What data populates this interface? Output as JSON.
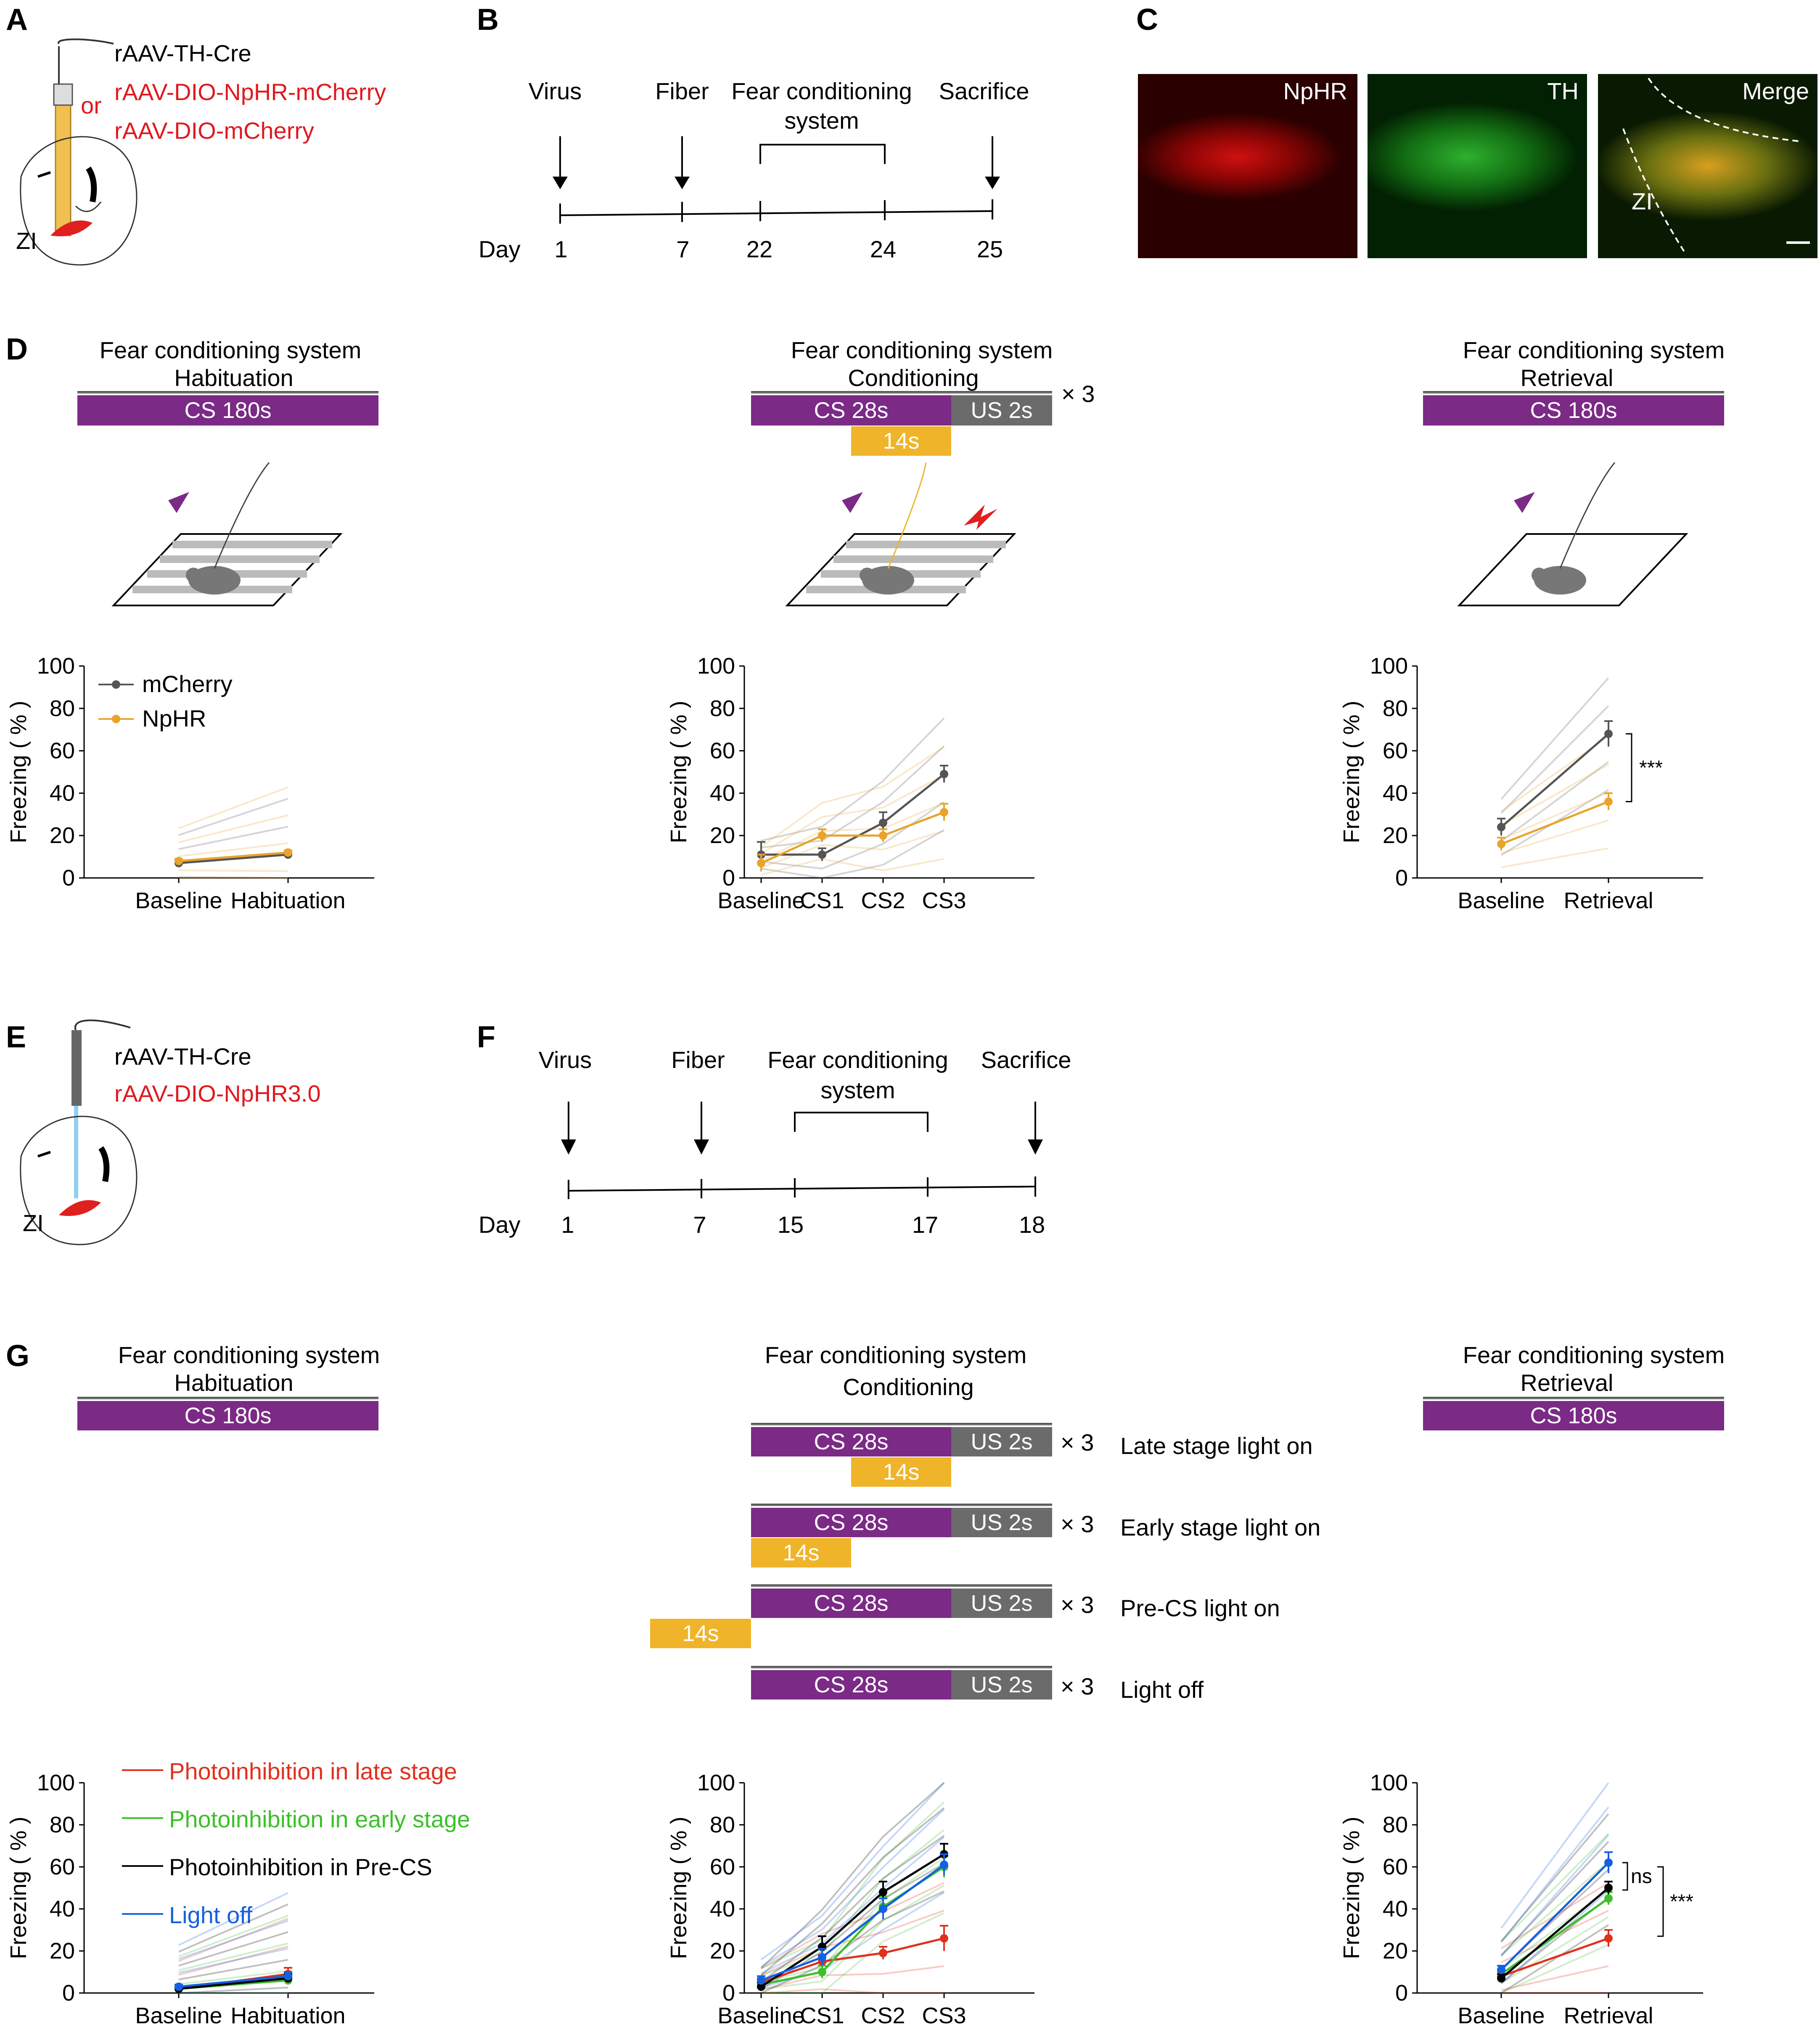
{
  "panels": {
    "A": "A",
    "B": "B",
    "C": "C",
    "D": "D",
    "E": "E",
    "F": "F",
    "G": "G"
  },
  "panelA": {
    "virus1": "rAAV-TH-Cre",
    "or": "or",
    "virus2": "rAAV-DIO-NpHR-mCherry",
    "virus3": "rAAV-DIO-mCherry",
    "region": "ZI"
  },
  "panelB": {
    "events": [
      "Virus",
      "Fiber",
      "Fear conditioning",
      "system",
      "Sacrifice"
    ],
    "day_label": "Day",
    "days": [
      "1",
      "7",
      "22",
      "24",
      "25"
    ]
  },
  "panelC": {
    "images": [
      "NpHR",
      "TH",
      "Merge"
    ],
    "region": "ZI",
    "colors": {
      "red": "#e81010",
      "green": "#1fa01f"
    }
  },
  "panelD": {
    "protocols": [
      {
        "title": "Fear conditioning system",
        "phase": "Habituation",
        "cs": "CS  180s"
      },
      {
        "title": "Fear conditioning system",
        "phase": "Conditioning",
        "cs": "CS  28s",
        "us": "US  2s",
        "light": "14s",
        "repeat": "× 3"
      },
      {
        "title": "Fear conditioning system",
        "phase": "Retrieval",
        "cs": "CS  180s"
      }
    ]
  },
  "panelE": {
    "virus1": "rAAV-TH-Cre",
    "virus2": "rAAV-DIO-NpHR3.0",
    "region": "ZI"
  },
  "panelF": {
    "events": [
      "Virus",
      "Fiber",
      "Fear conditioning",
      "system",
      "Sacrifice"
    ],
    "day_label": "Day",
    "days": [
      "1",
      "7",
      "15",
      "17",
      "18"
    ]
  },
  "panelG": {
    "habituation": {
      "title": "Fear conditioning system",
      "phase": "Habituation",
      "cs": "CS  180s"
    },
    "conditioning": {
      "title": "Fear conditioning system",
      "phase": "Conditioning"
    },
    "retrieval": {
      "title": "Fear conditioning system",
      "phase": "Retrieval",
      "cs": "CS  180s"
    },
    "rows": [
      {
        "cs": "CS  28s",
        "us": "US  2s",
        "light": "14s",
        "repeat": "× 3",
        "label": "Late stage light on"
      },
      {
        "cs": "CS  28s",
        "us": "US  2s",
        "light": "14s",
        "repeat": "× 3",
        "label": "Early stage light on"
      },
      {
        "cs": "CS  28s",
        "us": "US  2s",
        "light": "14s",
        "repeat": "× 3",
        "label": "Pre-CS  light on"
      },
      {
        "cs": "CS  28s",
        "us": "US  2s",
        "repeat": "× 3",
        "label": "Light off"
      }
    ],
    "legend": [
      {
        "name": "Photoinhibition in late stage",
        "color": "#e0301c"
      },
      {
        "name": "Photoinhibition in early stage",
        "color": "#3cc02a"
      },
      {
        "name": "Photoinhibition in Pre-CS",
        "color": "#000000"
      },
      {
        "name": "Light off",
        "color": "#1560e0"
      }
    ]
  },
  "chart_data": [
    {
      "id": "D1",
      "type": "line",
      "ylabel": "Freezing ( % )",
      "ylim": [
        0,
        100
      ],
      "yticks": [
        "0",
        "20",
        "40",
        "60",
        "80",
        "100"
      ],
      "categories": [
        "Baseline",
        "Habituation"
      ],
      "legend": [
        "mCherry",
        "NpHR"
      ],
      "series": [
        {
          "name": "mCherry",
          "color": "#555555",
          "values": [
            7,
            11
          ],
          "err": [
            1,
            1
          ]
        },
        {
          "name": "NpHR",
          "color": "#e8a42a",
          "values": [
            8,
            12
          ],
          "err": [
            1,
            1
          ]
        }
      ]
    },
    {
      "id": "D2",
      "type": "line",
      "ylabel": "Freezing ( % )",
      "ylim": [
        0,
        100
      ],
      "yticks": [
        "0",
        "20",
        "40",
        "60",
        "80",
        "100"
      ],
      "categories": [
        "Baseline",
        "CS1",
        "CS2",
        "CS3"
      ],
      "series": [
        {
          "name": "mCherry",
          "color": "#555555",
          "values": [
            11,
            11,
            26,
            49
          ],
          "err": [
            6,
            3,
            5,
            4
          ]
        },
        {
          "name": "NpHR",
          "color": "#e8a42a",
          "values": [
            7,
            20,
            20,
            31
          ],
          "err": [
            4,
            3,
            3,
            4
          ]
        }
      ]
    },
    {
      "id": "D3",
      "type": "line",
      "ylabel": "Freezing ( % )",
      "ylim": [
        0,
        100
      ],
      "yticks": [
        "0",
        "20",
        "40",
        "60",
        "80",
        "100"
      ],
      "categories": [
        "Baseline",
        "Retrieval"
      ],
      "significance": "***",
      "series": [
        {
          "name": "mCherry",
          "color": "#555555",
          "values": [
            24,
            68
          ],
          "err": [
            4,
            6
          ]
        },
        {
          "name": "NpHR",
          "color": "#e8a42a",
          "values": [
            16,
            36
          ],
          "err": [
            3,
            4
          ]
        }
      ]
    },
    {
      "id": "G1",
      "type": "line",
      "ylabel": "Freezing ( % )",
      "ylim": [
        0,
        100
      ],
      "yticks": [
        "0",
        "20",
        "40",
        "60",
        "80",
        "100"
      ],
      "categories": [
        "Baseline",
        "Habituation"
      ],
      "series": [
        {
          "name": "Photoinhibition in late stage",
          "color": "#e0301c",
          "values": [
            2,
            9
          ],
          "err": [
            1,
            3
          ]
        },
        {
          "name": "Photoinhibition in early stage",
          "color": "#3cc02a",
          "values": [
            2,
            6
          ],
          "err": [
            1,
            2
          ]
        },
        {
          "name": "Photoinhibition in Pre-CS",
          "color": "#000000",
          "values": [
            2,
            7
          ],
          "err": [
            1,
            2
          ]
        },
        {
          "name": "Light off",
          "color": "#1560e0",
          "values": [
            3,
            8
          ],
          "err": [
            1,
            2
          ]
        }
      ]
    },
    {
      "id": "G2",
      "type": "line",
      "ylabel": "Freezing ( % )",
      "ylim": [
        0,
        100
      ],
      "yticks": [
        "0",
        "20",
        "40",
        "60",
        "80",
        "100"
      ],
      "categories": [
        "Baseline",
        "CS1",
        "CS2",
        "CS3"
      ],
      "series": [
        {
          "name": "Photoinhibition in late stage",
          "color": "#e0301c",
          "values": [
            5,
            15,
            19,
            26
          ],
          "err": [
            2,
            3,
            3,
            6
          ]
        },
        {
          "name": "Photoinhibition in early stage",
          "color": "#3cc02a",
          "values": [
            4,
            10,
            41,
            60
          ],
          "err": [
            2,
            3,
            5,
            5
          ]
        },
        {
          "name": "Photoinhibition in Pre-CS",
          "color": "#000000",
          "values": [
            3,
            22,
            48,
            66
          ],
          "err": [
            2,
            5,
            5,
            5
          ]
        },
        {
          "name": "Light off",
          "color": "#1560e0",
          "values": [
            6,
            17,
            40,
            61
          ],
          "err": [
            2,
            4,
            5,
            5
          ]
        }
      ]
    },
    {
      "id": "G3",
      "type": "line",
      "ylabel": "Freezing ( % )",
      "ylim": [
        0,
        100
      ],
      "yticks": [
        "0",
        "20",
        "40",
        "60",
        "80",
        "100"
      ],
      "categories": [
        "Baseline",
        "Retrieval"
      ],
      "significance": [
        "ns",
        "***"
      ],
      "series": [
        {
          "name": "Photoinhibition in late stage",
          "color": "#e0301c",
          "values": [
            8,
            26
          ],
          "err": [
            2,
            4
          ]
        },
        {
          "name": "Photoinhibition in early stage",
          "color": "#3cc02a",
          "values": [
            9,
            45
          ],
          "err": [
            2,
            3
          ]
        },
        {
          "name": "Photoinhibition in Pre-CS",
          "color": "#000000",
          "values": [
            7,
            50
          ],
          "err": [
            2,
            3
          ]
        },
        {
          "name": "Light off",
          "color": "#1560e0",
          "values": [
            11,
            62
          ],
          "err": [
            2,
            5
          ]
        }
      ]
    }
  ]
}
